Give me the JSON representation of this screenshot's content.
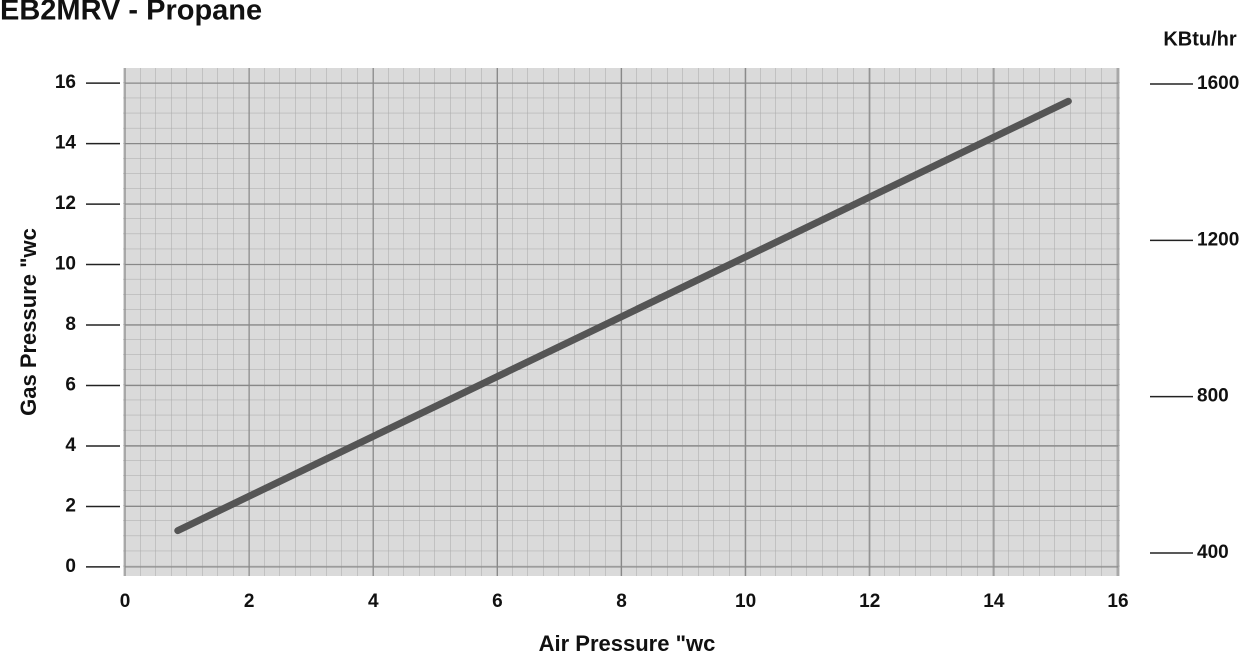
{
  "chart_data": {
    "type": "line",
    "title": "EB2MRV  -  Propane",
    "x_label": "Air Pressure \"wc",
    "y_label": "Gas Pressure \"wc",
    "y2_label": "KBtu/hr",
    "x": [
      0.85,
      15.2
    ],
    "series": [
      {
        "name": "Propane",
        "color": "#555555",
        "values": [
          1.2,
          15.4
        ]
      }
    ],
    "xlim": [
      0,
      16
    ],
    "xticks": [
      0,
      2,
      4,
      6,
      8,
      10,
      12,
      14,
      16
    ],
    "ylim": [
      -0.3,
      16.5
    ],
    "yticks": [
      0,
      2,
      4,
      6,
      8,
      10,
      12,
      14,
      16
    ],
    "y2lim": [
      341,
      1641
    ],
    "y2ticks": [
      400,
      800,
      1200,
      1600
    ],
    "grid": true
  }
}
